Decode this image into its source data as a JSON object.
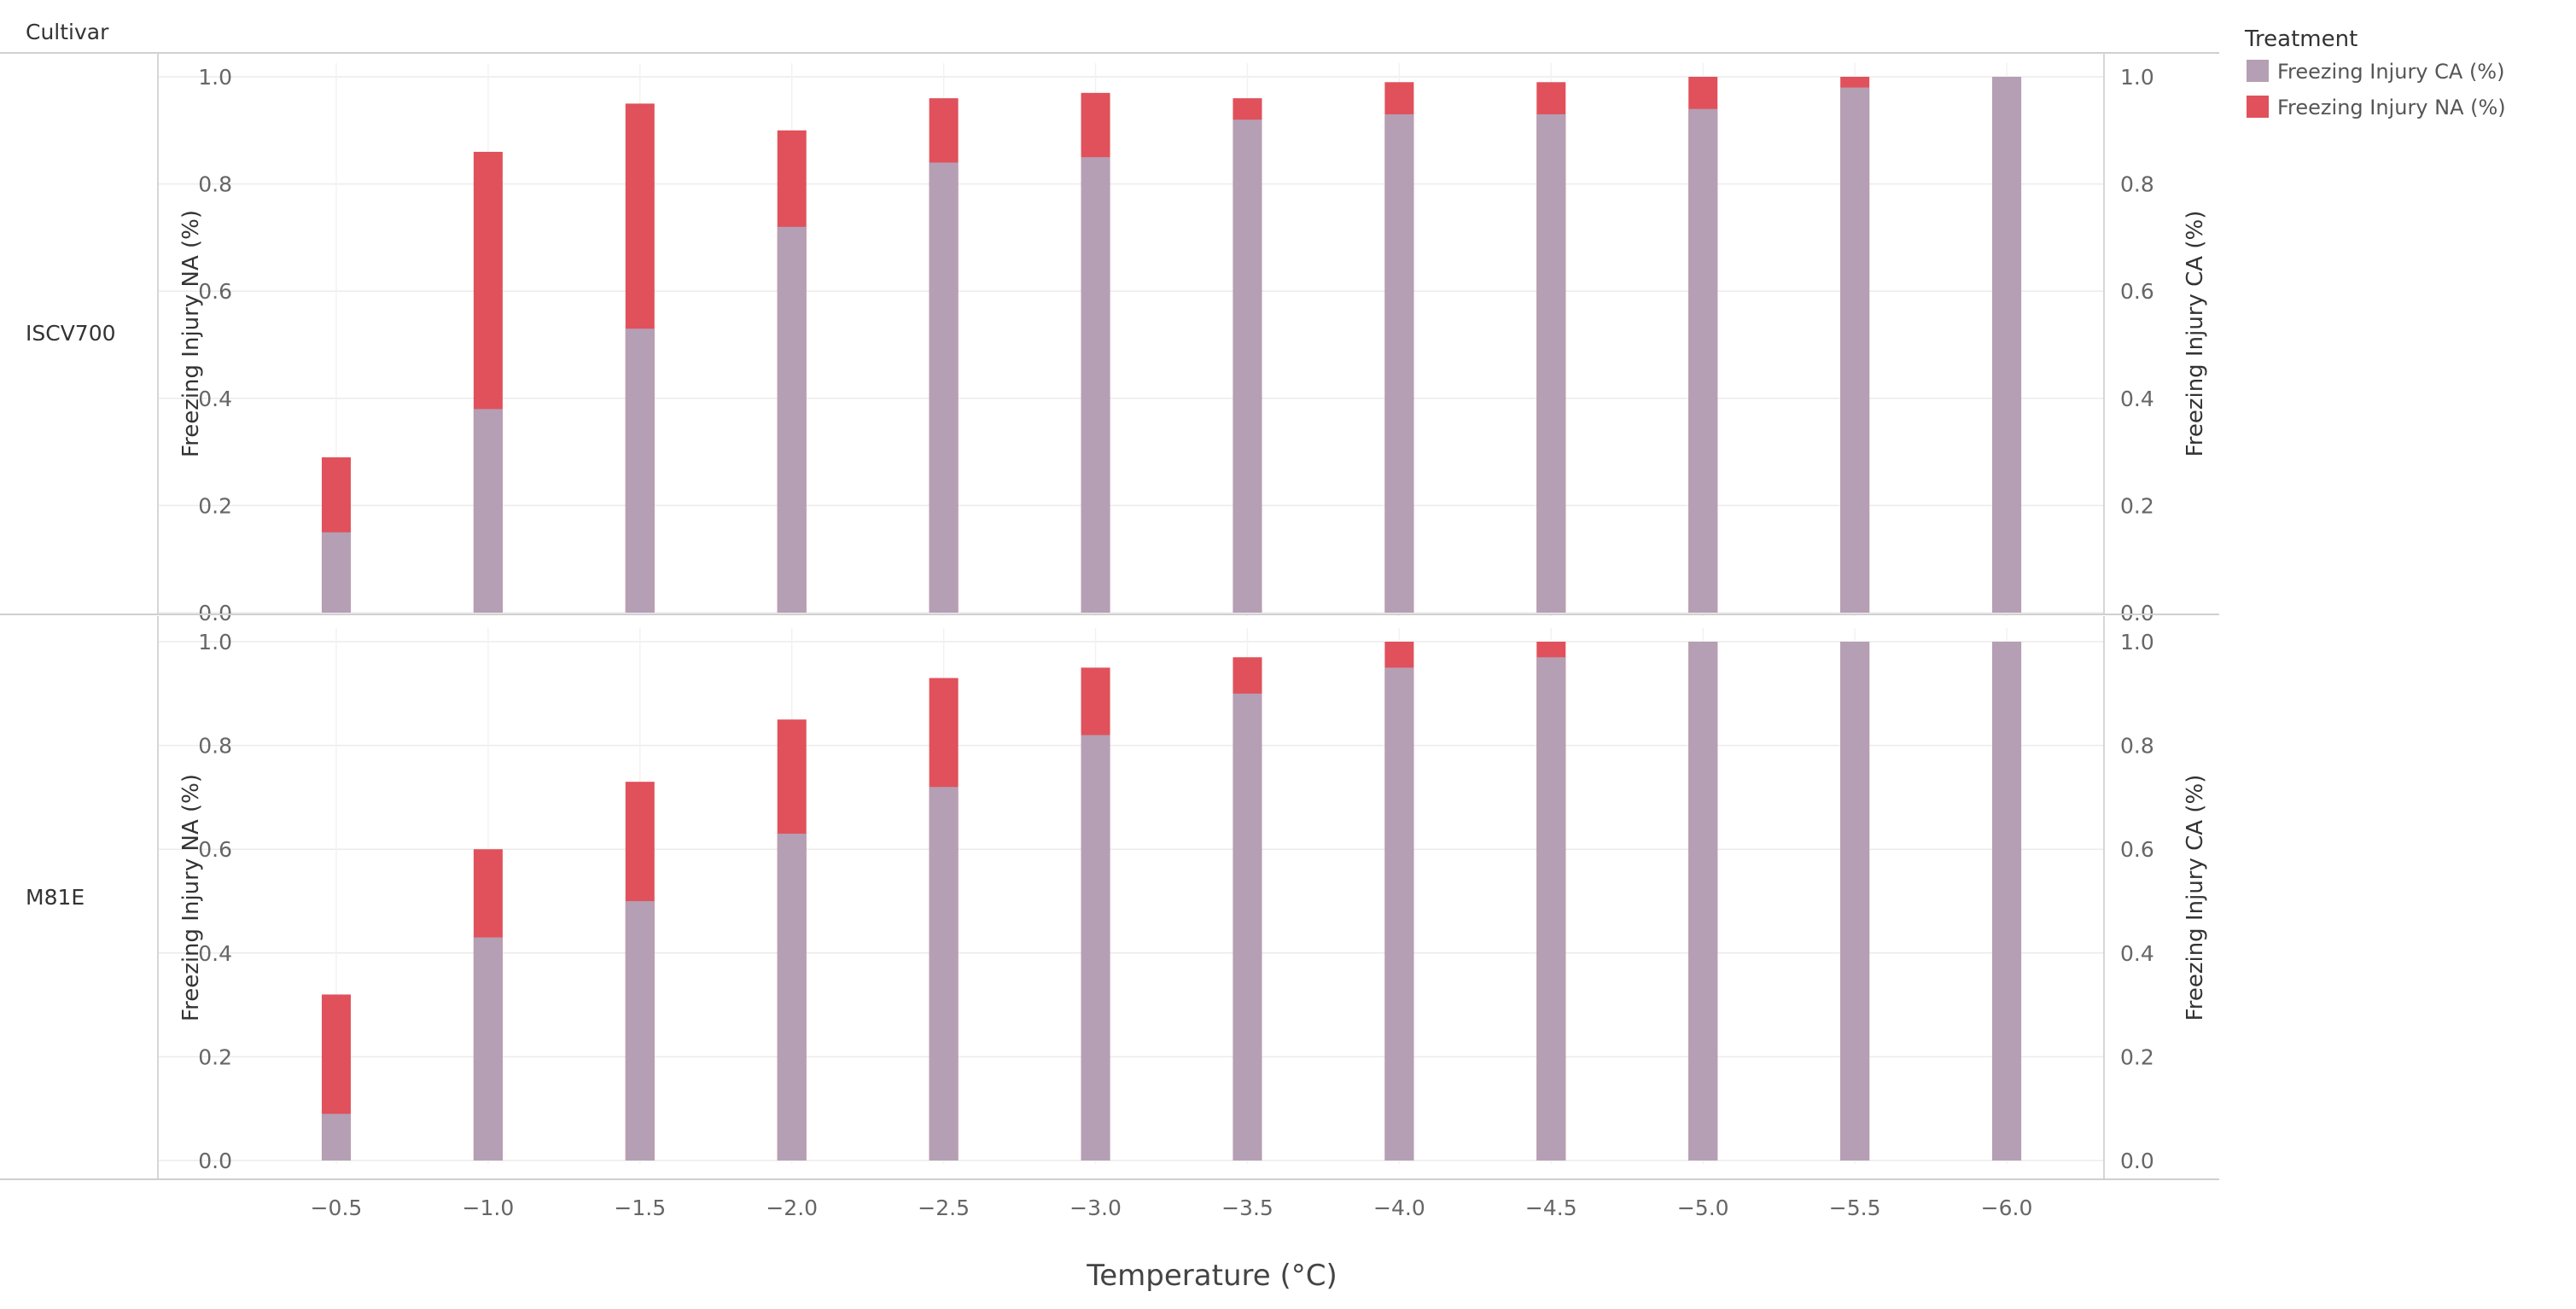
{
  "header": {
    "row_header": "Cultivar"
  },
  "legend": {
    "title": "Treatment",
    "items": [
      {
        "label": "Freezing Injury CA (%)",
        "color": "#b59fb4",
        "icon": "square-swatch-icon"
      },
      {
        "label": "Freezing Injury NA (%)",
        "color": "#e0515b",
        "icon": "square-swatch-icon"
      }
    ]
  },
  "chart_data": {
    "type": "bar",
    "stacked": "overlay",
    "title": "",
    "xlabel": "Temperature (°C)",
    "ylabel_left": "Freezing Injury NA (%)",
    "ylabel_right": "Freezing Injury CA (%)",
    "ylim": [
      0,
      1
    ],
    "yticks": [
      "0.0",
      "0.2",
      "0.4",
      "0.6",
      "0.8",
      "1.0"
    ],
    "grid": true,
    "legend_position": "top-right",
    "categories": [
      "−0.5",
      "−1.0",
      "−1.5",
      "−2.0",
      "−2.5",
      "−3.0",
      "−3.5",
      "−4.0",
      "−4.5",
      "−5.0",
      "−5.5",
      "−6.0"
    ],
    "panels": [
      {
        "cultivar": "ISCV700",
        "series": [
          {
            "name": "Freezing Injury CA (%)",
            "values": [
              0.15,
              0.38,
              0.53,
              0.72,
              0.84,
              0.85,
              0.92,
              0.93,
              0.93,
              0.94,
              0.98,
              1.0
            ]
          },
          {
            "name": "Freezing Injury NA (%)",
            "values": [
              0.29,
              0.86,
              0.95,
              0.9,
              0.96,
              0.97,
              0.96,
              0.99,
              0.99,
              1.0,
              1.0,
              1.0
            ]
          }
        ]
      },
      {
        "cultivar": "M81E",
        "series": [
          {
            "name": "Freezing Injury CA (%)",
            "values": [
              0.09,
              0.43,
              0.5,
              0.63,
              0.72,
              0.82,
              0.9,
              0.95,
              0.97,
              1.0,
              1.0,
              1.0
            ]
          },
          {
            "name": "Freezing Injury NA (%)",
            "values": [
              0.32,
              0.6,
              0.73,
              0.85,
              0.93,
              0.95,
              0.97,
              1.0,
              1.0,
              1.0,
              1.0,
              1.0
            ]
          }
        ]
      }
    ]
  }
}
